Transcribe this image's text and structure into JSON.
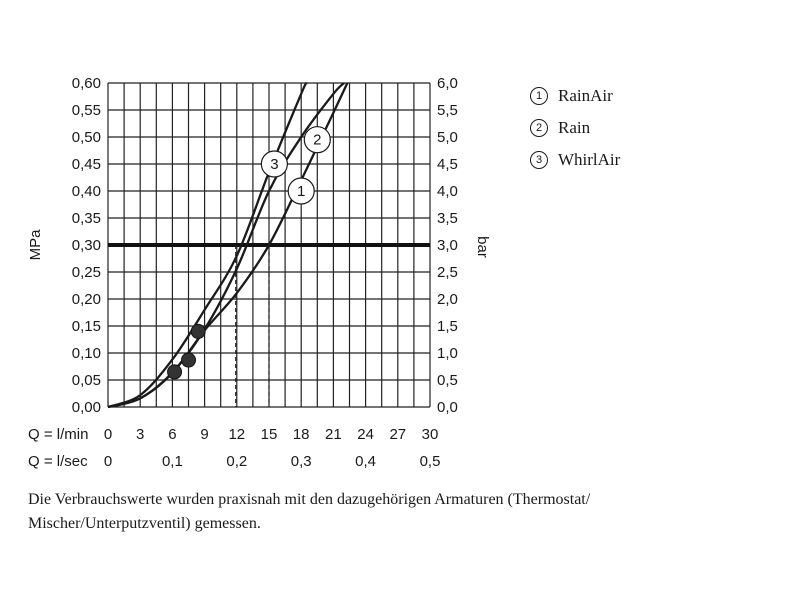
{
  "chart_data": {
    "type": "line",
    "left_axis_label": "MPa",
    "right_axis_label": "bar",
    "left_ticks": [
      "0,00",
      "0,05",
      "0,10",
      "0,15",
      "0,20",
      "0,25",
      "0,30",
      "0,35",
      "0,40",
      "0,45",
      "0,50",
      "0,55",
      "0,60"
    ],
    "right_ticks": [
      "0,0",
      "0,5",
      "1,0",
      "1,5",
      "2,0",
      "2,5",
      "3,0",
      "3,5",
      "4,0",
      "4,5",
      "5,0",
      "5,5",
      "6,0"
    ],
    "x_row1_label": "Q = l/min",
    "x_row1_ticks": [
      "0",
      "3",
      "6",
      "9",
      "12",
      "15",
      "18",
      "21",
      "24",
      "27",
      "30"
    ],
    "x_row2_label": "Q = l/sec",
    "x_row2_ticks": [
      "0",
      "0,1",
      "0,2",
      "0,3",
      "0,4",
      "0,5"
    ],
    "xlim": [
      0,
      30
    ],
    "ylim": [
      0,
      0.6
    ],
    "grid": true,
    "reference_line": {
      "y": 0.3
    },
    "series": [
      {
        "id": "1",
        "name": "RainAir",
        "x": [
          0,
          3,
          6,
          9,
          12,
          15,
          18,
          21,
          22
        ],
        "y": [
          0,
          0.016,
          0.064,
          0.144,
          0.256,
          0.4,
          0.5,
          0.58,
          0.6
        ],
        "marker_label_at": [
          18,
          0.4
        ],
        "point": [
          7.5,
          0.087
        ]
      },
      {
        "id": "2",
        "name": "Rain",
        "x": [
          0,
          3,
          6,
          9,
          12,
          15,
          18,
          21,
          22.3
        ],
        "y": [
          0,
          0.016,
          0.063,
          0.142,
          0.211,
          0.3,
          0.42,
          0.545,
          0.6
        ],
        "marker_label_at": [
          19.5,
          0.495
        ],
        "point": [
          6.2,
          0.065
        ]
      },
      {
        "id": "3",
        "name": "WhirlAir",
        "x": [
          0,
          3,
          6,
          9,
          12,
          15,
          18,
          18.5
        ],
        "y": [
          0,
          0.022,
          0.088,
          0.18,
          0.28,
          0.435,
          0.58,
          0.6
        ],
        "marker_label_at": [
          15.5,
          0.45
        ],
        "point": [
          8.4,
          0.14
        ]
      }
    ],
    "dashed_markers": [
      {
        "x": 11.9,
        "y": 0.3
      },
      {
        "x": 15.0,
        "y": 0.3
      }
    ]
  },
  "legend": [
    {
      "num": "1",
      "name": "RainAir"
    },
    {
      "num": "2",
      "name": "Rain"
    },
    {
      "num": "3",
      "name": "WhirlAir"
    }
  ],
  "caption_line1": "Die Verbrauchswerte wurden praxisnah mit den dazugehörigen Armaturen (Thermostat/",
  "caption_line2": "Mischer/Unterputzventil) gemessen."
}
